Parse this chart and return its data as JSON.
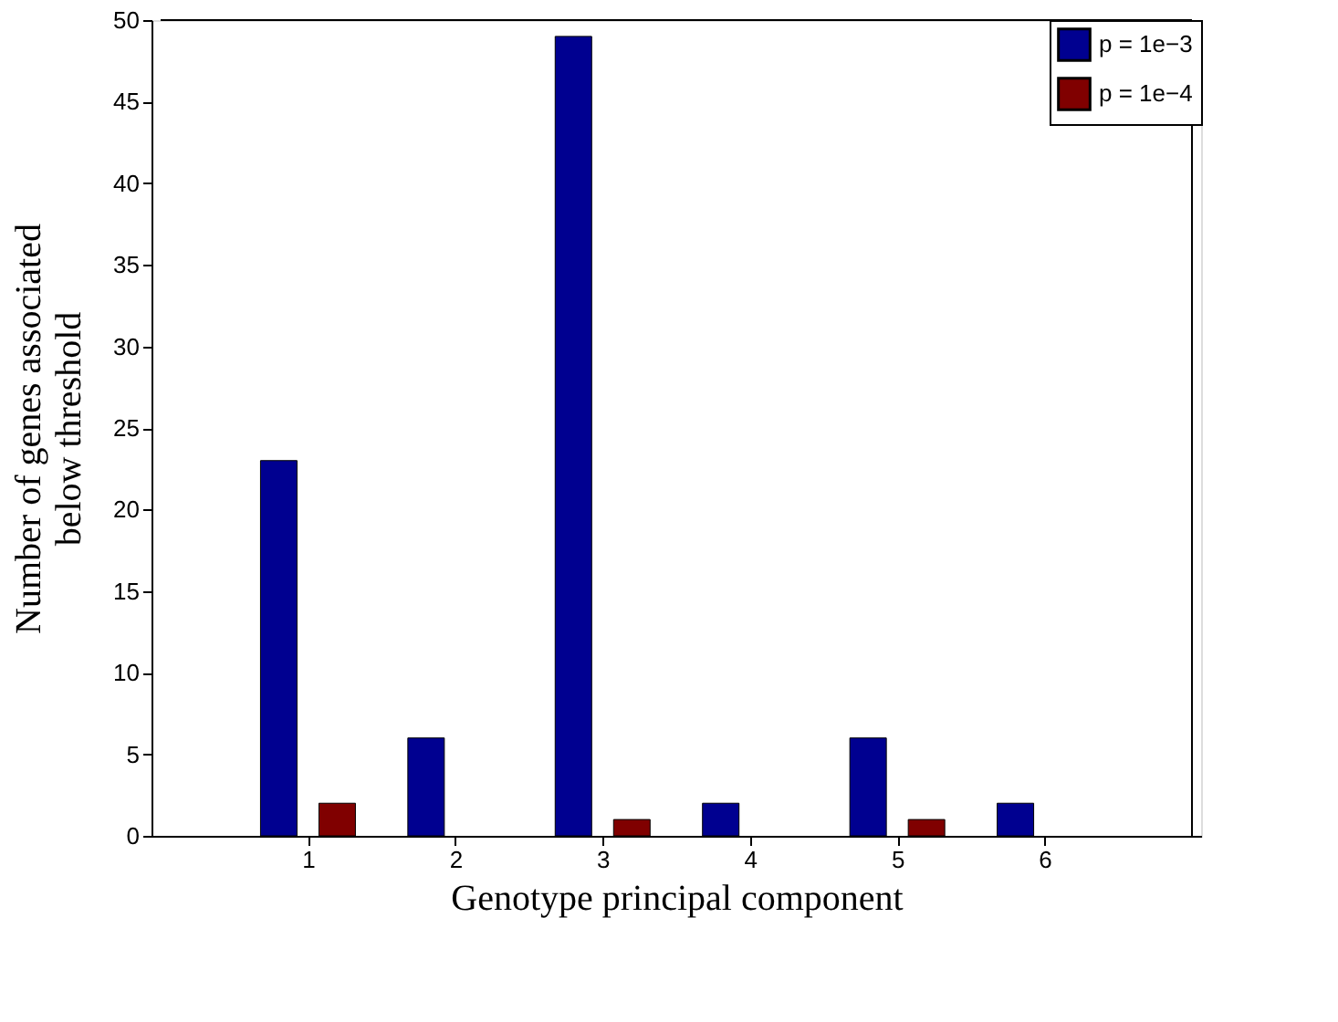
{
  "chart_data": {
    "type": "bar",
    "xlabel": "Genotype principal component",
    "ylabel": "Number of genes associated below threshold",
    "x": [
      1,
      2,
      3,
      4,
      5,
      6
    ],
    "xlim": [
      0,
      7
    ],
    "xticks": [
      1,
      2,
      3,
      4,
      5,
      6
    ],
    "ylim": [
      0,
      50
    ],
    "yticks": [
      0,
      5,
      10,
      15,
      20,
      25,
      30,
      35,
      40,
      45,
      50
    ],
    "series": [
      {
        "name": "p = 1e−3",
        "color": "#000090",
        "values": [
          23,
          6,
          49,
          2,
          6,
          2
        ]
      },
      {
        "name": "p = 1e−4",
        "color": "#800000",
        "values": [
          2,
          0,
          1,
          0,
          1,
          0
        ]
      }
    ],
    "legend": "top right",
    "grid": false
  }
}
